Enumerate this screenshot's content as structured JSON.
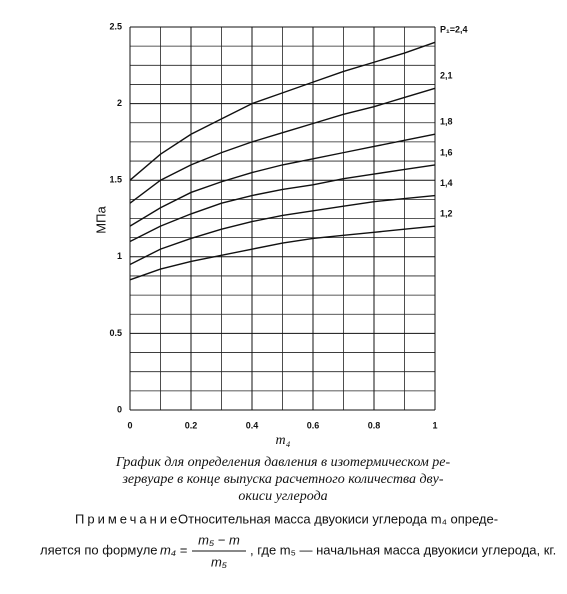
{
  "chart_data": {
    "type": "line",
    "y_label": "МПа",
    "x_label": "m₄",
    "x": [
      0,
      0.1,
      0.2,
      0.3,
      0.4,
      0.5,
      0.6,
      0.7,
      0.8,
      0.9,
      1
    ],
    "series": [
      {
        "name": "P₁=2,4",
        "color": "#111111",
        "values": [
          1.5,
          1.67,
          1.8,
          1.9,
          2.0,
          2.07,
          2.14,
          2.21,
          2.27,
          2.33,
          2.4
        ]
      },
      {
        "name": "2,1",
        "color": "#111111",
        "values": [
          1.35,
          1.5,
          1.6,
          1.68,
          1.75,
          1.81,
          1.87,
          1.93,
          1.98,
          2.04,
          2.1
        ]
      },
      {
        "name": "1,8",
        "color": "#111111",
        "values": [
          1.2,
          1.32,
          1.42,
          1.49,
          1.55,
          1.6,
          1.64,
          1.68,
          1.72,
          1.76,
          1.8
        ]
      },
      {
        "name": "1,6",
        "color": "#111111",
        "values": [
          1.1,
          1.2,
          1.28,
          1.35,
          1.4,
          1.44,
          1.47,
          1.51,
          1.54,
          1.57,
          1.6
        ]
      },
      {
        "name": "1,4",
        "color": "#111111",
        "values": [
          0.95,
          1.05,
          1.12,
          1.18,
          1.23,
          1.27,
          1.3,
          1.33,
          1.36,
          1.38,
          1.4
        ]
      },
      {
        "name": "1,2",
        "color": "#111111",
        "values": [
          0.85,
          0.92,
          0.97,
          1.01,
          1.05,
          1.09,
          1.12,
          1.14,
          1.16,
          1.18,
          1.2
        ]
      }
    ],
    "xlim": [
      0,
      1
    ],
    "xticks": [
      0,
      0.2,
      0.4,
      0.6,
      0.8,
      1
    ],
    "ylim": [
      0,
      2.5
    ],
    "yticks": [
      0,
      0.5,
      1,
      1.5,
      2,
      2.5
    ],
    "grid": true
  },
  "caption": [
    "График для определения давления в изотермическом ре-",
    "зервуаре в конце выпуска расчетного количества дву-",
    "окиси углерода"
  ],
  "note": {
    "label": "Примечание.",
    "text": "Относительная масса двуокиси углерода m₄ опреде-",
    "lead": "ляется по формуле",
    "lhs": "m₄ =",
    "numerator": "m₅ − m",
    "denominator": "m₅",
    "tail": ", где m₅ — начальная масса двуокиси углерода, кг."
  }
}
